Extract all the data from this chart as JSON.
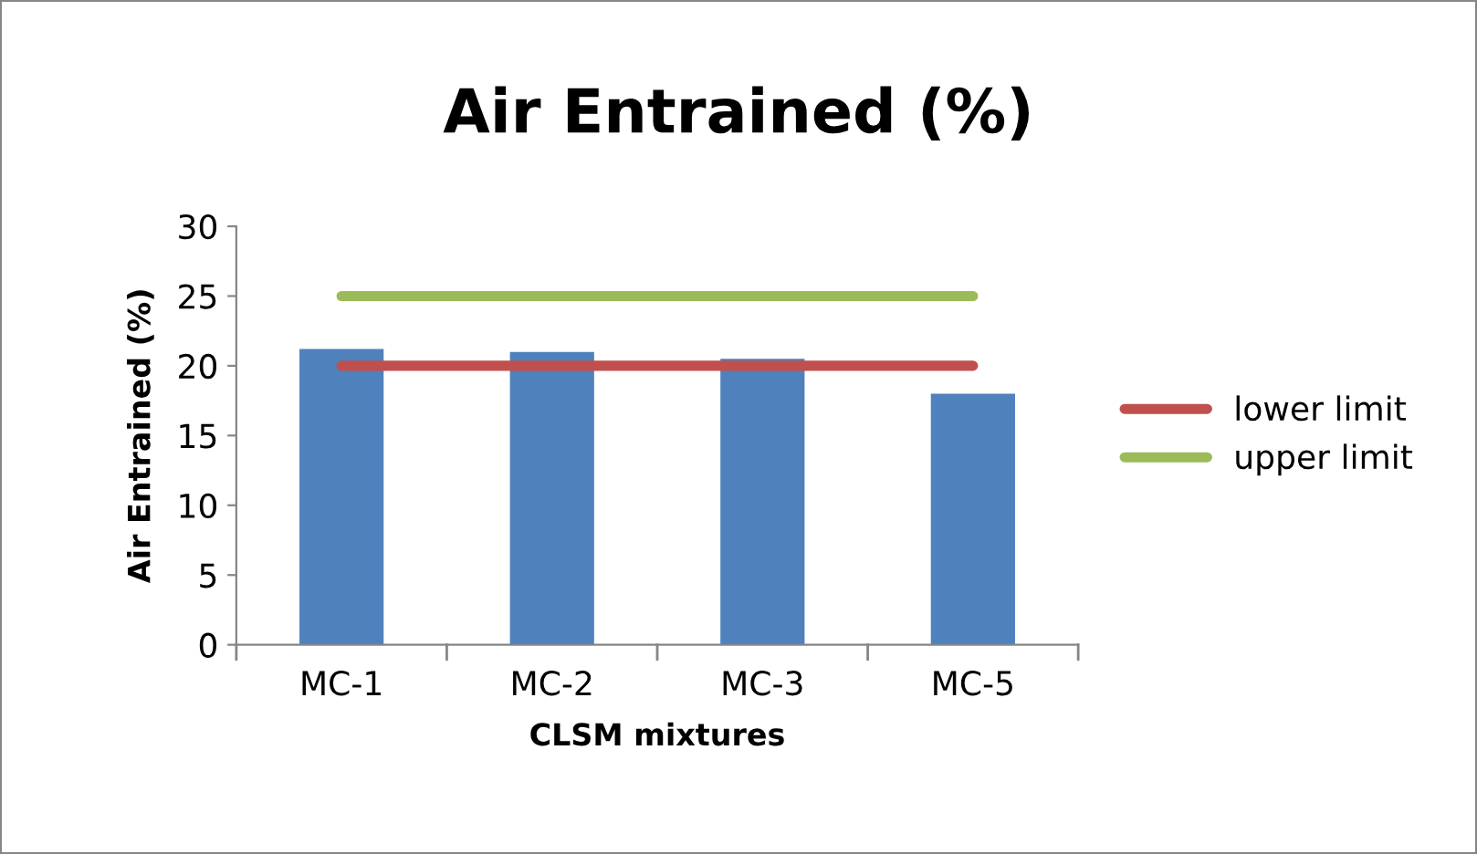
{
  "chart_data": {
    "type": "bar",
    "title": "Air Entrained (%)",
    "xlabel": "CLSM mixtures",
    "ylabel": "Air Entrained (%)",
    "categories": [
      "MC-1",
      "MC-2",
      "MC-3",
      "MC-5"
    ],
    "series": [
      {
        "color": "#4f81bd",
        "values": [
          21.2,
          21.0,
          20.5,
          18.0
        ]
      },
      {
        "type": "line",
        "name": "lower limit",
        "color": "#c0504d",
        "values": [
          20,
          20,
          20,
          20
        ]
      },
      {
        "type": "line",
        "name": "upper limit",
        "color": "#9bbb59",
        "values": [
          25,
          25,
          25,
          25
        ]
      }
    ],
    "ylim": [
      0,
      30
    ],
    "yticks": [
      0,
      5,
      10,
      15,
      20,
      25,
      30
    ],
    "grid": false,
    "legend": "right",
    "marker": "none"
  }
}
